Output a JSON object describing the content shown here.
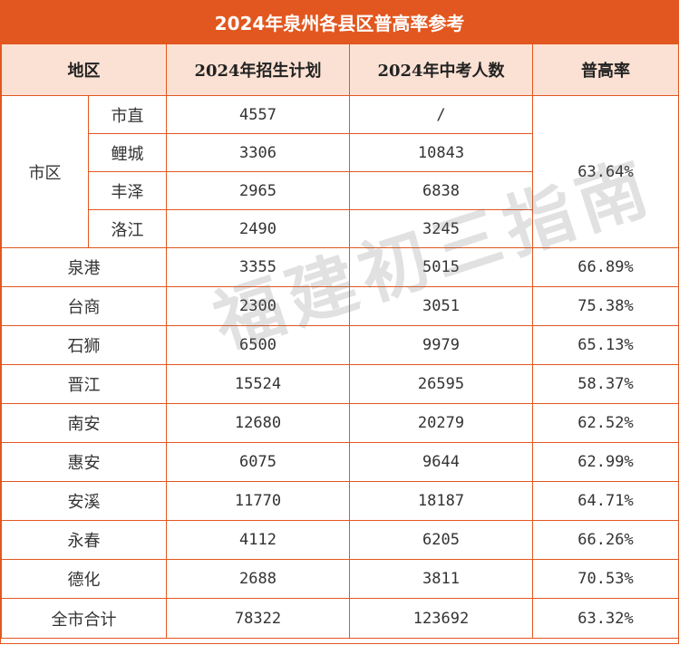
{
  "title": "2024年泉州各县区普高率参考",
  "headers": {
    "region": "地区",
    "plan": "2024年招生计划",
    "candidates": "2024年中考人数",
    "rate": "普高率"
  },
  "city_group": {
    "label": "市区",
    "rate": "63.64%",
    "subs": [
      {
        "name": "市直",
        "plan": "4557",
        "candidates": "/"
      },
      {
        "name": "鲤城",
        "plan": "3306",
        "candidates": "10843"
      },
      {
        "name": "丰泽",
        "plan": "2965",
        "candidates": "6838"
      },
      {
        "name": "洛江",
        "plan": "2490",
        "candidates": "3245"
      }
    ]
  },
  "rows": [
    {
      "name": "泉港",
      "plan": "3355",
      "candidates": "5015",
      "rate": "66.89%"
    },
    {
      "name": "台商",
      "plan": "2300",
      "candidates": "3051",
      "rate": "75.38%"
    },
    {
      "name": "石狮",
      "plan": "6500",
      "candidates": "9979",
      "rate": "65.13%"
    },
    {
      "name": "晋江",
      "plan": "15524",
      "candidates": "26595",
      "rate": "58.37%"
    },
    {
      "name": "南安",
      "plan": "12680",
      "candidates": "20279",
      "rate": "62.52%"
    },
    {
      "name": "惠安",
      "plan": "6075",
      "candidates": "9644",
      "rate": "62.99%"
    },
    {
      "name": "安溪",
      "plan": "11770",
      "candidates": "18187",
      "rate": "64.71%"
    },
    {
      "name": "永春",
      "plan": "4112",
      "candidates": "6205",
      "rate": "66.26%"
    },
    {
      "name": "德化",
      "plan": "2688",
      "candidates": "3811",
      "rate": "70.53%"
    }
  ],
  "total": {
    "name": "全市合计",
    "plan": "78322",
    "candidates": "123692",
    "rate": "63.32%"
  },
  "watermark": "福建初三指南",
  "colors": {
    "accent": "#e2571f",
    "header_bg": "#fbe1d3"
  }
}
